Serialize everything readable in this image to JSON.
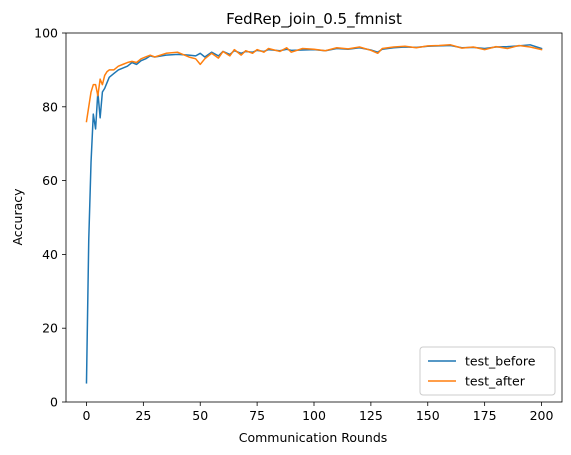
{
  "chart_data": {
    "type": "line",
    "title": "FedRep_join_0.5_fmnist",
    "xlabel": "Communication Rounds",
    "ylabel": "Accuracy",
    "xlim": [
      -9,
      209
    ],
    "ylim": [
      0,
      100
    ],
    "xticks": [
      0,
      25,
      50,
      75,
      100,
      125,
      150,
      175,
      200
    ],
    "yticks": [
      0,
      20,
      40,
      60,
      80,
      100
    ],
    "grid": false,
    "legend_position": "lower-right",
    "series": [
      {
        "name": "test_before",
        "color": "#1f77b4",
        "x": [
          0,
          1,
          2,
          3,
          4,
          5,
          6,
          7,
          8,
          9,
          10,
          12,
          14,
          16,
          18,
          20,
          22,
          24,
          26,
          28,
          30,
          35,
          40,
          45,
          48,
          50,
          52,
          55,
          58,
          60,
          63,
          65,
          68,
          70,
          73,
          75,
          78,
          80,
          85,
          88,
          90,
          95,
          100,
          105,
          110,
          115,
          120,
          125,
          128,
          130,
          135,
          140,
          145,
          150,
          155,
          160,
          165,
          170,
          175,
          180,
          185,
          190,
          195,
          200
        ],
        "y": [
          5.2,
          44,
          65,
          78,
          74,
          84,
          77,
          84,
          85,
          86.5,
          88,
          89,
          90,
          90.5,
          91,
          92,
          91.5,
          92.5,
          93,
          93.8,
          93.5,
          94,
          94.2,
          94,
          93.8,
          94.5,
          93.5,
          94.8,
          93.8,
          95,
          94.2,
          95.2,
          94.5,
          95,
          94.8,
          95.3,
          95,
          95.5,
          95.2,
          95.6,
          95.3,
          95.4,
          95.5,
          95.2,
          95.8,
          95.6,
          96,
          95.4,
          94.8,
          95.6,
          96,
          96.2,
          96.1,
          96.4,
          96.5,
          96.6,
          96,
          96.1,
          95.8,
          96.2,
          96.3,
          96.5,
          96.8,
          95.8
        ]
      },
      {
        "name": "test_after",
        "color": "#ff7f0e",
        "x": [
          0,
          1,
          2,
          3,
          4,
          5,
          6,
          7,
          8,
          9,
          10,
          12,
          14,
          16,
          18,
          20,
          22,
          24,
          26,
          28,
          30,
          35,
          40,
          45,
          48,
          50,
          52,
          55,
          58,
          60,
          63,
          65,
          68,
          70,
          73,
          75,
          78,
          80,
          85,
          88,
          90,
          95,
          100,
          105,
          110,
          115,
          120,
          125,
          128,
          130,
          135,
          140,
          145,
          150,
          155,
          160,
          165,
          170,
          175,
          180,
          185,
          190,
          195,
          200
        ],
        "y": [
          76,
          80,
          84,
          86,
          86,
          83,
          87.5,
          86,
          88.5,
          89.5,
          90,
          90,
          91,
          91.5,
          92,
          92.3,
          92,
          93,
          93.5,
          94,
          93.5,
          94.5,
          94.8,
          93.5,
          93,
          91.5,
          93,
          94.5,
          93.2,
          95,
          93.8,
          95.5,
          94,
          95.2,
          94.5,
          95.5,
          94.8,
          95.8,
          95,
          96,
          94.8,
          95.8,
          95.6,
          95.2,
          96,
          95.7,
          96.2,
          95.3,
          94.5,
          95.8,
          96.2,
          96.4,
          96,
          96.5,
          96.6,
          96.8,
          95.9,
          96.2,
          95.5,
          96.3,
          95.8,
          96.6,
          96.2,
          95.5
        ]
      }
    ]
  }
}
